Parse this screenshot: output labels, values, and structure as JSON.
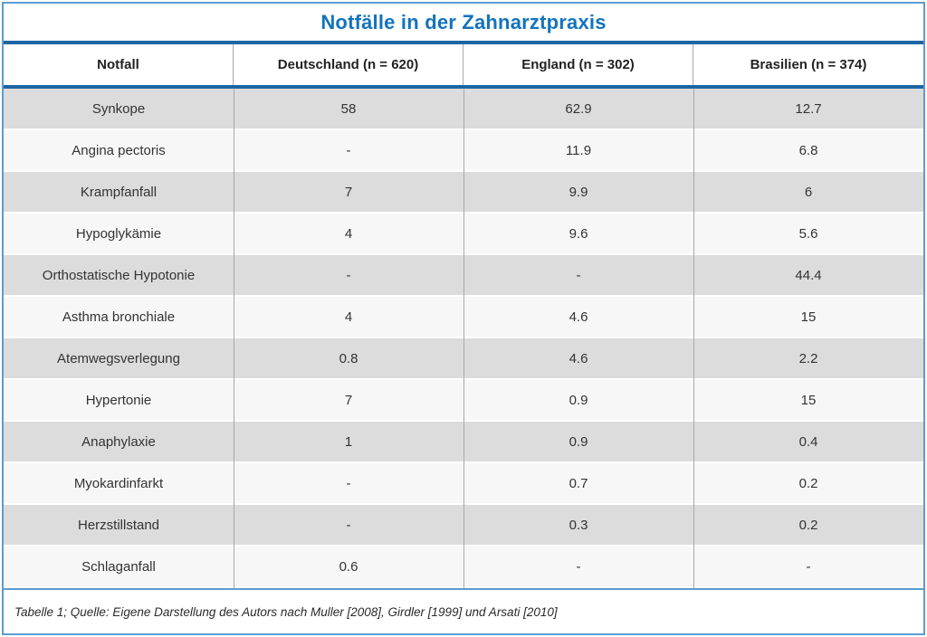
{
  "title": "Notfälle in der Zahnarztpraxis",
  "footer_caption": "Tabelle 1; Quelle: Eigene Darstellung des Autors nach Muller [2008], Girdler [1999] und Arsati [2010]",
  "colors": {
    "title_blue": "#1373bd",
    "navy_rule": "#1d65a3",
    "light_blue_border": "#5b9bd1",
    "row_gray": "#dcdcdc",
    "row_light": "#f7f7f7",
    "divider_gray": "#a8a8a8"
  },
  "table": {
    "columns": [
      "Notfall",
      "Deutschland (n = 620)",
      "England (n = 302)",
      "Brasilien (n = 374)"
    ],
    "rows": [
      [
        "Synkope",
        "58",
        "62.9",
        "12.7"
      ],
      [
        "Angina pectoris",
        "-",
        "11.9",
        "6.8"
      ],
      [
        "Krampfanfall",
        "7",
        "9.9",
        "6"
      ],
      [
        "Hypoglykämie",
        "4",
        "9.6",
        "5.6"
      ],
      [
        "Orthostatische Hypotonie",
        "-",
        "-",
        "44.4"
      ],
      [
        "Asthma bronchiale",
        "4",
        "4.6",
        "15"
      ],
      [
        "Atemwegsverlegung",
        "0.8",
        "4.6",
        "2.2"
      ],
      [
        "Hypertonie",
        "7",
        "0.9",
        "15"
      ],
      [
        "Anaphylaxie",
        "1",
        "0.9",
        "0.4"
      ],
      [
        "Myokardinfarkt",
        "-",
        "0.7",
        "0.2"
      ],
      [
        "Herzstillstand",
        "-",
        "0.3",
        "0.2"
      ],
      [
        "Schlaganfall",
        "0.6",
        "-",
        "-"
      ]
    ]
  },
  "chart_data": {
    "type": "table",
    "title": "Notfälle in der Zahnarztpraxis",
    "categories": [
      "Synkope",
      "Angina pectoris",
      "Krampfanfall",
      "Hypoglykämie",
      "Orthostatische Hypotonie",
      "Asthma bronchiale",
      "Atemwegsverlegung",
      "Hypertonie",
      "Anaphylaxie",
      "Myokardinfarkt",
      "Herzstillstand",
      "Schlaganfall"
    ],
    "series": [
      {
        "name": "Deutschland (n = 620)",
        "values": [
          58,
          null,
          7,
          4,
          null,
          4,
          0.8,
          7,
          1,
          null,
          null,
          0.6
        ]
      },
      {
        "name": "England (n = 302)",
        "values": [
          62.9,
          11.9,
          9.9,
          9.6,
          null,
          4.6,
          4.6,
          0.9,
          0.9,
          0.7,
          0.3,
          null
        ]
      },
      {
        "name": "Brasilien (n = 374)",
        "values": [
          12.7,
          6.8,
          6,
          5.6,
          44.4,
          15,
          2.2,
          15,
          0.4,
          0.2,
          0.2,
          null
        ]
      }
    ],
    "missing_value_marker": "-",
    "caption": "Tabelle 1; Quelle: Eigene Darstellung des Autors nach Muller [2008], Girdler [1999] und Arsati [2010]"
  }
}
